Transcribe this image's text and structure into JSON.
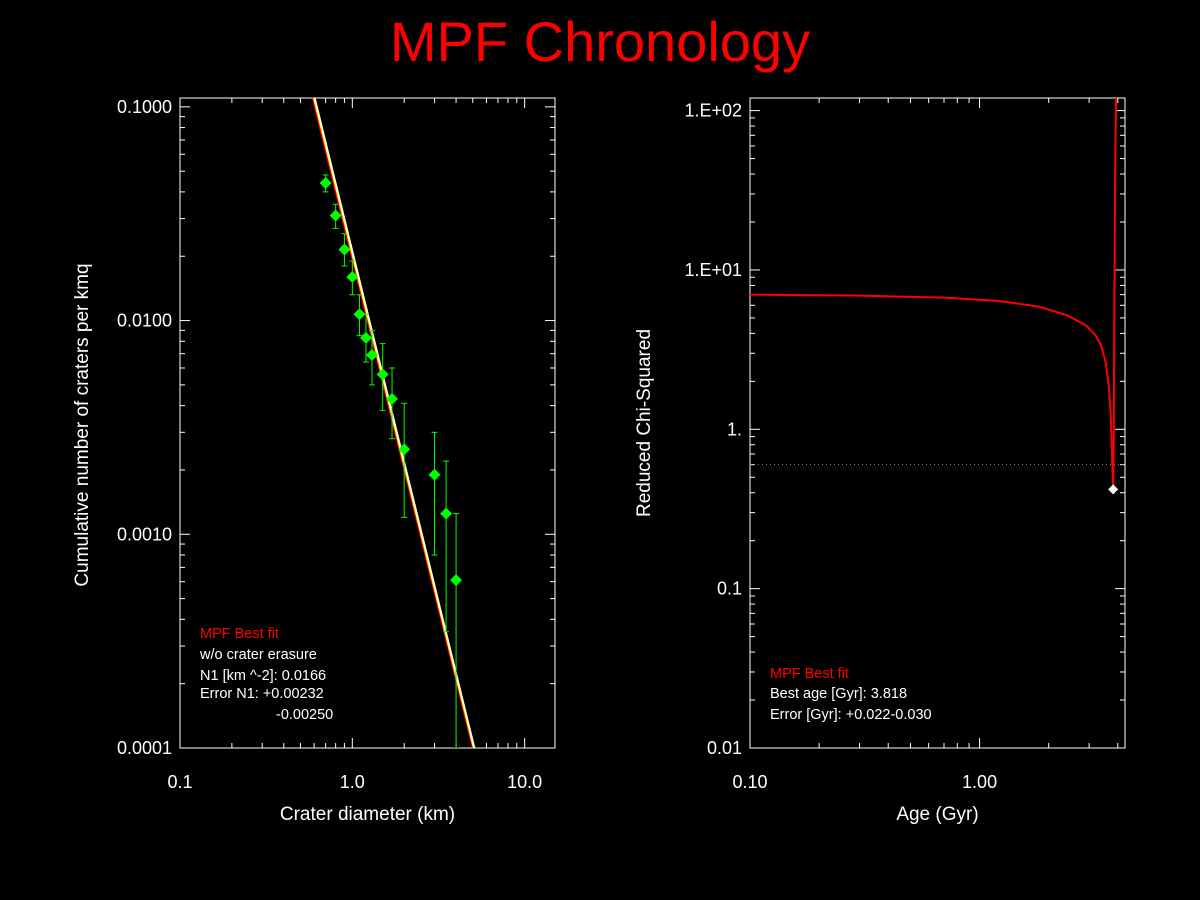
{
  "title": "MPF Chronology",
  "chart_data": [
    {
      "type": "scatter",
      "xlabel": "Crater diameter (km)",
      "ylabel": "Cumulative number of craters per kmq",
      "xscale": "log",
      "yscale": "log",
      "xlim": [
        0.1,
        15
      ],
      "ylim": [
        0.0001,
        0.11
      ],
      "x_ticks": [
        "0.1",
        "1.0",
        "10.0"
      ],
      "y_ticks": [
        "0.0001",
        "0.0010",
        "0.0100",
        "0.1000"
      ],
      "points": [
        {
          "x": 0.7,
          "y": 0.044,
          "err_lo": 0.04,
          "err_hi": 0.048
        },
        {
          "x": 0.8,
          "y": 0.031,
          "err_lo": 0.027,
          "err_hi": 0.035
        },
        {
          "x": 0.9,
          "y": 0.0215,
          "err_lo": 0.018,
          "err_hi": 0.0255
        },
        {
          "x": 1.0,
          "y": 0.016,
          "err_lo": 0.0132,
          "err_hi": 0.019
        },
        {
          "x": 1.1,
          "y": 0.0107,
          "err_lo": 0.0085,
          "err_hi": 0.0132
        },
        {
          "x": 1.2,
          "y": 0.0083,
          "err_lo": 0.0064,
          "err_hi": 0.0107
        },
        {
          "x": 1.3,
          "y": 0.0069,
          "err_lo": 0.005,
          "err_hi": 0.009
        },
        {
          "x": 1.5,
          "y": 0.0056,
          "err_lo": 0.0038,
          "err_hi": 0.0078
        },
        {
          "x": 1.7,
          "y": 0.0043,
          "err_lo": 0.0028,
          "err_hi": 0.006
        },
        {
          "x": 2.0,
          "y": 0.0025,
          "err_lo": 0.0012,
          "err_hi": 0.0041
        },
        {
          "x": 3.0,
          "y": 0.0019,
          "err_lo": 0.0008,
          "err_hi": 0.003
        },
        {
          "x": 3.5,
          "y": 0.00125,
          "err_lo": 0.00035,
          "err_hi": 0.0022
        },
        {
          "x": 4.0,
          "y": 0.00061,
          "err_lo": 0.0001,
          "err_hi": 0.00125
        }
      ],
      "fit_lines": [
        {
          "color": "#ff0000",
          "x": [
            0.588,
            5.0
          ],
          "y": [
            0.11,
            0.0001
          ]
        },
        {
          "color": "#ffff00",
          "x": [
            0.598,
            5.06
          ],
          "y": [
            0.11,
            0.0001
          ]
        },
        {
          "color": "#ffffff",
          "x": [
            0.606,
            5.12
          ],
          "y": [
            0.11,
            0.0001
          ]
        }
      ],
      "colors": {
        "points": "#00ff00",
        "fit": "#ff0000"
      },
      "annotation": {
        "fit_label": "MPF Best fit",
        "lines": [
          "w/o crater erasure",
          "N1 [km ^-2]: 0.0166",
          "Error N1: +0.00232",
          "-0.00250"
        ]
      }
    },
    {
      "type": "line",
      "xlabel": "Age (Gyr)",
      "ylabel": "Reduced Chi-Squared",
      "xscale": "log",
      "yscale": "log",
      "xlim": [
        0.1,
        4.3
      ],
      "ylim": [
        0.01,
        120
      ],
      "x_ticks": [
        "0.10",
        "1.00"
      ],
      "y_ticks": [
        "0.01",
        "0.1",
        "1.",
        "1.E+01",
        "1.E+02"
      ],
      "curve": {
        "x": [
          0.1,
          0.3,
          0.7,
          1.2,
          1.8,
          2.4,
          2.9,
          3.2,
          3.4,
          3.55,
          3.65,
          3.72,
          3.77,
          3.8,
          3.818,
          3.84,
          3.86,
          3.88,
          3.9,
          3.93
        ],
        "y": [
          7.0,
          6.9,
          6.7,
          6.4,
          5.9,
          5.2,
          4.5,
          3.9,
          3.3,
          2.6,
          1.9,
          1.3,
          0.75,
          0.5,
          0.42,
          0.9,
          4.0,
          15,
          50,
          120
        ]
      },
      "best_point": {
        "x": 3.818,
        "y": 0.42
      },
      "threshold_y": 0.6,
      "colors": {
        "curve": "#ff0000",
        "best_point": "#ffffff",
        "threshold": "#888888"
      },
      "annotation": {
        "fit_label": "MPF Best fit",
        "lines": [
          "Best age [Gyr]: 3.818",
          "Error [Gyr]: +0.022-0.030"
        ]
      }
    }
  ]
}
